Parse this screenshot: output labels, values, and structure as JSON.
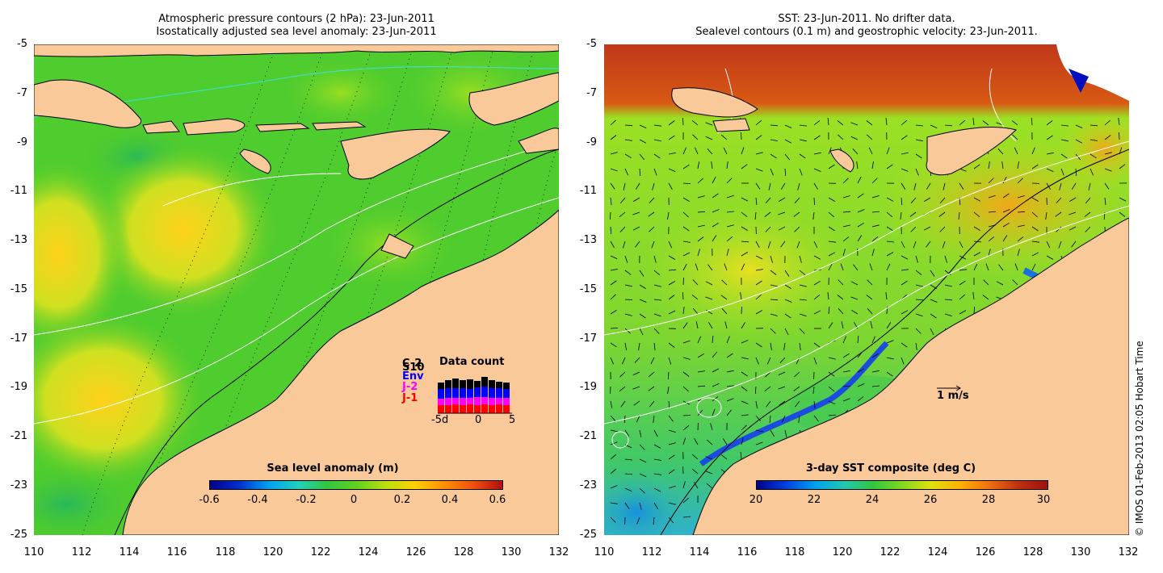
{
  "left_panel": {
    "title_line1": "Atmospheric pressure contours (2 hPa): 23-Jun-2011",
    "title_line2": "Isostatically adjusted sea level anomaly: 23-Jun-2011",
    "colorbar": {
      "title": "Sea level anomaly (m)",
      "ticks": [
        "-0.6",
        "-0.4",
        "-0.2",
        "0",
        "0.2",
        "0.4",
        "0.6"
      ],
      "range": [
        -0.6,
        0.6
      ]
    },
    "legend": {
      "sources": [
        {
          "label": "C-2",
          "color": "#000000"
        },
        {
          "label": "S10",
          "color": "#000000"
        },
        {
          "label": "Env",
          "color": "#0000ff"
        },
        {
          "label": "J-2",
          "color": "#ff00ff"
        },
        {
          "label": "J-1",
          "color": "#ff0000"
        }
      ],
      "title": "Data count",
      "xticks": [
        "-5d",
        "0",
        "5"
      ]
    }
  },
  "right_panel": {
    "title_line1": "SST: 23-Jun-2011. No drifter data.",
    "title_line2": "Sealevel contours (0.1 m) and geostrophic velocity: 23-Jun-2011.",
    "colorbar": {
      "title": "3-day SST composite (deg C)",
      "ticks": [
        "20",
        "22",
        "24",
        "26",
        "28",
        "30"
      ],
      "range": [
        20,
        30
      ]
    },
    "velocity_scale_label": "1 m/s"
  },
  "axes": {
    "y_ticks": [
      "-5",
      "-7",
      "-9",
      "-11",
      "-13",
      "-15",
      "-17",
      "-19",
      "-21",
      "-23",
      "-25"
    ],
    "x_ticks": [
      "110",
      "112",
      "114",
      "116",
      "118",
      "120",
      "122",
      "124",
      "126",
      "128",
      "130",
      "132"
    ],
    "lat_range": [
      -25,
      -5
    ],
    "lon_range": [
      110,
      132
    ]
  },
  "credit": "© IMOS 01-Feb-2013 02:05 Hobart Time",
  "colors": {
    "land": "#f9c99a",
    "ssla_base": "#4fcc2e",
    "sst_base": "#9be024",
    "sst_warm": "#c0371a"
  }
}
